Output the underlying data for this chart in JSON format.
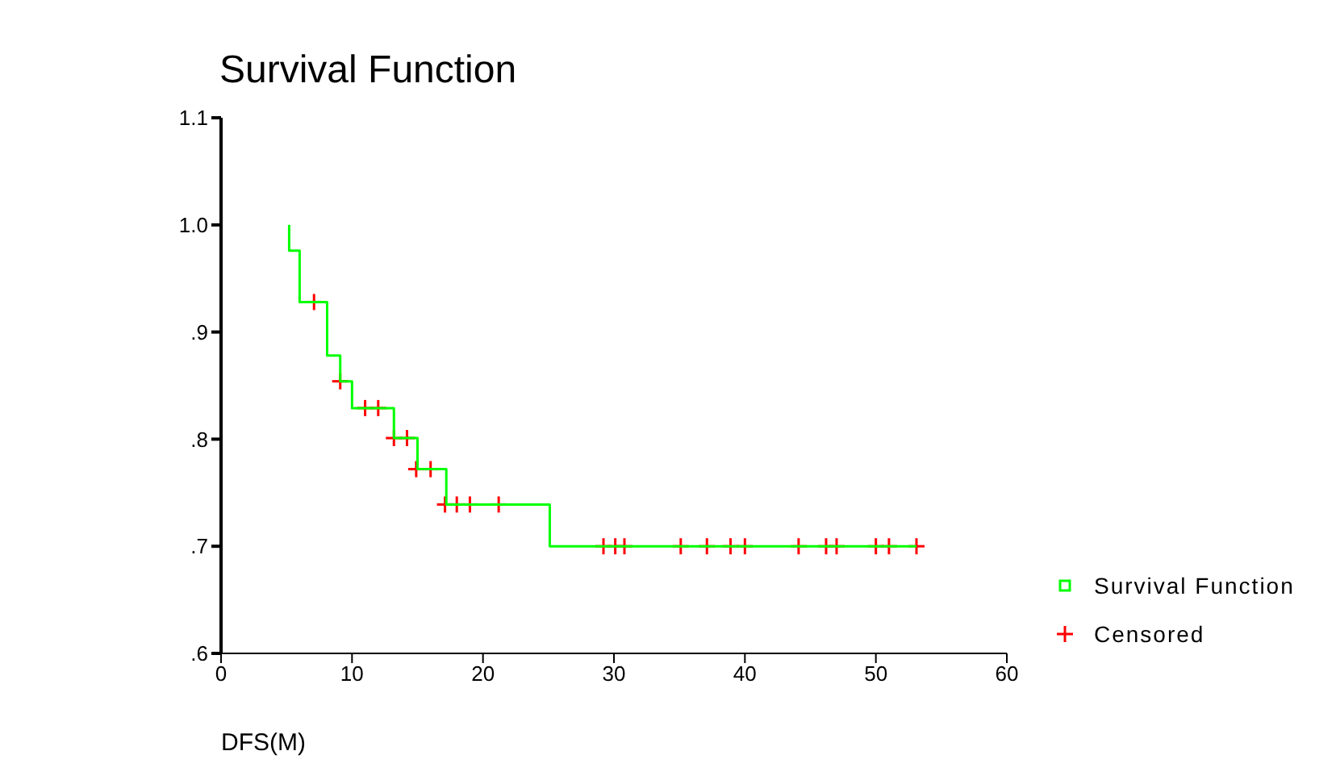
{
  "chart_data": {
    "type": "step",
    "title": "Survival Function",
    "xlabel": "DFS(M)",
    "xlim": [
      0,
      60
    ],
    "xticks": [
      0,
      10,
      20,
      30,
      40,
      50,
      60
    ],
    "ylim": [
      0.6,
      1.1
    ],
    "yticks": [
      {
        "value": 0.6,
        "label": ".6"
      },
      {
        "value": 0.7,
        "label": ".7"
      },
      {
        "value": 0.8,
        "label": ".8"
      },
      {
        "value": 0.9,
        "label": ".9"
      },
      {
        "value": 1.0,
        "label": "1.0"
      },
      {
        "value": 1.1,
        "label": "1.1"
      }
    ],
    "grid": false,
    "legend": "right",
    "series": [
      {
        "name": "Survival Function",
        "color": "#00ff00",
        "x": [
          5.2,
          5.2,
          6.0,
          8.1,
          9.1,
          10.0,
          13.2,
          15.0,
          17.2,
          25.1,
          53.1
        ],
        "values": [
          1.0,
          0.976,
          0.928,
          0.878,
          0.854,
          0.829,
          0.801,
          0.772,
          0.739,
          0.7,
          0.7
        ]
      },
      {
        "name": "Censored",
        "type": "scatter",
        "color": "#ff0000",
        "marker": "cross",
        "x": [
          7.1,
          9.1,
          11.0,
          12.0,
          13.2,
          14.2,
          14.9,
          16.0,
          17.1,
          18.0,
          19.0,
          21.2,
          29.2,
          30.1,
          30.8,
          35.1,
          37.1,
          38.9,
          40.0,
          44.1,
          46.2,
          47.0,
          50.0,
          51.0,
          53.1
        ],
        "values": [
          0.928,
          0.854,
          0.829,
          0.829,
          0.801,
          0.801,
          0.772,
          0.772,
          0.739,
          0.739,
          0.739,
          0.739,
          0.7,
          0.7,
          0.7,
          0.7,
          0.7,
          0.7,
          0.7,
          0.7,
          0.7,
          0.7,
          0.7,
          0.7,
          0.7
        ]
      }
    ]
  }
}
